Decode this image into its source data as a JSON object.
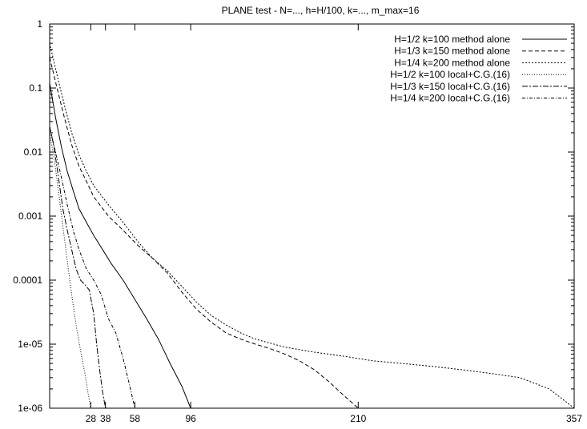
{
  "chart_data": {
    "type": "line",
    "title": "PLANE test - N=..., h=H/100, k=..., m_max=16",
    "xlabel": "",
    "ylabel": "",
    "xlim": [
      0,
      357
    ],
    "ylim": [
      1e-06,
      1
    ],
    "y_scale": "log",
    "x_ticks": [
      28,
      38,
      58,
      96,
      210,
      357
    ],
    "y_ticks": [
      {
        "value": 1,
        "label": "1"
      },
      {
        "value": 0.1,
        "label": "0.1"
      },
      {
        "value": 0.01,
        "label": "0.01"
      },
      {
        "value": 0.001,
        "label": "0.001"
      },
      {
        "value": 0.0001,
        "label": "0.0001"
      },
      {
        "value": 1e-05,
        "label": "1e-05"
      },
      {
        "value": 1e-06,
        "label": "1e-06"
      }
    ],
    "grid": false,
    "legend_position": "top-right",
    "series": [
      {
        "name": "H=1/2  k=100  method alone",
        "dash": "",
        "x": [
          0,
          4,
          8,
          12,
          16,
          20,
          25,
          30,
          36,
          42,
          50,
          58,
          66,
          74,
          82,
          90,
          96
        ],
        "y": [
          0.12,
          0.035,
          0.012,
          0.005,
          0.0025,
          0.0013,
          0.0008,
          0.0005,
          0.0003,
          0.00018,
          0.0001,
          5e-05,
          2.5e-05,
          1.2e-05,
          5e-06,
          2.2e-06,
          1e-06
        ]
      },
      {
        "name": "H=1/3  k=150  method alone",
        "dash": "5,3",
        "x": [
          0,
          5,
          10,
          15,
          20,
          25,
          30,
          40,
          50,
          60,
          70,
          80,
          90,
          100,
          110,
          120,
          130,
          140,
          150,
          160,
          170,
          180,
          190,
          200,
          210
        ],
        "y": [
          0.3,
          0.1,
          0.035,
          0.013,
          0.006,
          0.0035,
          0.002,
          0.001,
          0.0006,
          0.00035,
          0.00022,
          0.00013,
          6.5e-05,
          3.5e-05,
          2.2e-05,
          1.5e-05,
          1.2e-05,
          1e-05,
          8.5e-06,
          7e-06,
          5.5e-06,
          4e-06,
          2.6e-06,
          1.6e-06,
          1e-06
        ]
      },
      {
        "name": "H=1/4  k=200  method alone",
        "dash": "2,2",
        "x": [
          0,
          5,
          10,
          15,
          20,
          25,
          30,
          40,
          50,
          60,
          70,
          80,
          90,
          100,
          110,
          120,
          130,
          140,
          160,
          180,
          200,
          220,
          240,
          260,
          280,
          300,
          320,
          340,
          357
        ],
        "y": [
          0.5,
          0.16,
          0.055,
          0.02,
          0.009,
          0.005,
          0.003,
          0.0015,
          0.0008,
          0.0004,
          0.00022,
          0.00014,
          8e-05,
          4.5e-05,
          2.8e-05,
          2e-05,
          1.5e-05,
          1.2e-05,
          9e-06,
          7.5e-06,
          6.5e-06,
          5.5e-06,
          5e-06,
          4.5e-06,
          4e-06,
          3.5e-06,
          3e-06,
          2e-06,
          1e-06
        ]
      },
      {
        "name": "H=1/2  k=100  local+C.G.(16)",
        "dash": "1,2",
        "x": [
          0,
          3,
          6,
          9,
          12,
          15,
          18,
          21,
          24,
          26,
          28
        ],
        "y": [
          0.02,
          0.008,
          0.0025,
          0.0007,
          0.0002,
          6e-05,
          2e-05,
          8e-06,
          3.5e-06,
          1.8e-06,
          1e-06
        ]
      },
      {
        "name": "H=1/3  k=150  local+C.G.(16)",
        "dash": "7,2,2,2",
        "x": [
          0,
          3,
          6,
          9,
          12,
          15,
          18,
          21,
          24,
          27,
          30,
          32,
          34,
          36,
          38
        ],
        "y": [
          0.025,
          0.012,
          0.004,
          0.0013,
          0.0006,
          0.0003,
          0.00015,
          0.0001,
          8.5e-05,
          7e-05,
          3e-05,
          1e-05,
          4e-06,
          1.8e-06,
          1e-06
        ]
      },
      {
        "name": "H=1/4  k=200  local+C.G.(16)",
        "dash": "4,2,1,2",
        "x": [
          0,
          4,
          8,
          12,
          16,
          20,
          25,
          30,
          35,
          40,
          45,
          50,
          54,
          58
        ],
        "y": [
          0.025,
          0.01,
          0.004,
          0.0015,
          0.0006,
          0.0003,
          0.00015,
          0.0001,
          6e-05,
          2.5e-05,
          1.5e-05,
          6e-06,
          2.5e-06,
          1e-06
        ]
      }
    ]
  }
}
